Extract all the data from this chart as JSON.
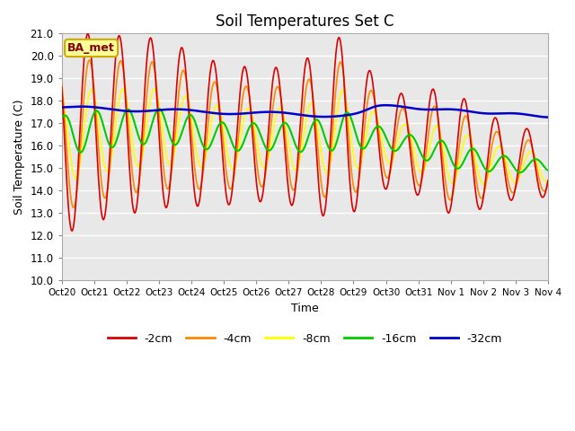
{
  "title": "Soil Temperatures Set C",
  "xlabel": "Time",
  "ylabel": "Soil Temperature (C)",
  "ylim": [
    10.0,
    21.0
  ],
  "yticks": [
    10.0,
    11.0,
    12.0,
    13.0,
    14.0,
    15.0,
    16.0,
    17.0,
    18.0,
    19.0,
    20.0,
    21.0
  ],
  "xtick_labels": [
    "Oct 20",
    "Oct 21",
    "Oct 22",
    "Oct 23",
    "Oct 24",
    "Oct 25",
    "Oct 26",
    "Oct 27",
    "Oct 28",
    "Oct 29",
    "Oct 30",
    "Oct 31",
    "Nov 1",
    "Nov 2",
    "Nov 3",
    "Nov 4"
  ],
  "plot_bg_color": "#e8e8e8",
  "fig_bg_color": "#ffffff",
  "grid_color": "#ffffff",
  "legend_label": "BA_met",
  "legend_bg": "#ffff99",
  "legend_border": "#ccaa00",
  "series_colors": {
    "-2cm": "#dd0000",
    "-4cm": "#ff8800",
    "-8cm": "#ffff00",
    "-16cm": "#00cc00",
    "-32cm": "#0000cc"
  },
  "series_linewidths": {
    "-2cm": 1.2,
    "-4cm": 1.2,
    "-8cm": 1.2,
    "-16cm": 1.5,
    "-32cm": 1.8
  },
  "n_days": 15.5,
  "n_pts": 744
}
